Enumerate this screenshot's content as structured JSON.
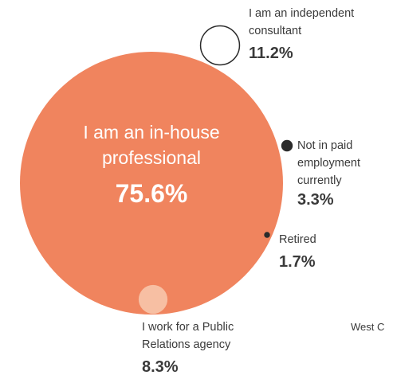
{
  "chart_data": {
    "type": "bubble",
    "categories": [
      "I am an in-house professional",
      "I am an independent consultant",
      "Not in paid employment currently",
      "Retired",
      "I work for a Public Relations agency"
    ],
    "values": [
      75.6,
      11.2,
      3.3,
      1.7,
      8.3
    ],
    "value_labels": [
      "75.6%",
      "11.2%",
      "3.3%",
      "1.7%",
      "8.3%"
    ],
    "colors": [
      "#f0845e",
      "#ffffff",
      "#2b2b2b",
      "#2b2b2b",
      "#f7bfa3"
    ],
    "annotation": "West C"
  }
}
